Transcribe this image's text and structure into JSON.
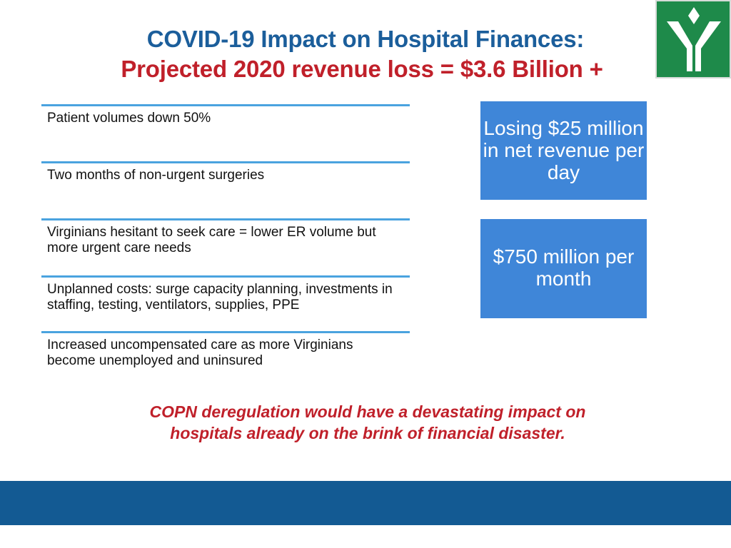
{
  "title": {
    "line1": "COVID-19 Impact on Hospital Finances:",
    "line2": "Projected 2020 revenue loss = $3.6 Billion +"
  },
  "impacts": [
    "Patient volumes down 50%",
    "Two months of non-urgent surgeries",
    "Virginians hesitant to seek care = lower ER volume but more urgent care needs",
    "Unplanned costs: surge capacity planning, investments in staffing, testing, ventilators, supplies, PPE",
    "Increased uncompensated care as more Virginians become unemployed and uninsured"
  ],
  "callouts": [
    "Losing $25 million in net revenue per day",
    "$750 million per month"
  ],
  "warning": {
    "line1": "COPN deregulation would have a devastating impact on",
    "line2": "hospitals already on the brink of financial disaster."
  },
  "colors": {
    "title_blue": "#1b5e9b",
    "title_red": "#c0202a",
    "divider_blue": "#4aa3df",
    "callout_blue": "#3f86d8",
    "footer_blue": "#135a93",
    "logo_green": "#1e8a4a"
  },
  "logo": {
    "icon": "stylized-y-logo-icon"
  }
}
